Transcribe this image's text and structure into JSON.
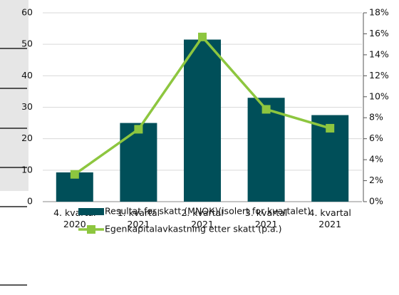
{
  "chart_data": {
    "type": "bar_line",
    "categories": [
      "4. kvartal 2020",
      "1. kvartal 2021",
      "2. kvartal 2021",
      "3. kvartal 2021",
      "4. kvartal 2021"
    ],
    "series": [
      {
        "name": "Resultat før skatt (MNOK)(isolert for kvartalet)",
        "type": "bar",
        "color": "#004f59",
        "values": [
          9.3,
          25,
          51.5,
          33,
          27.5
        ]
      },
      {
        "name": "Egenkapitalavkastning etter skatt (p.a.)",
        "type": "line",
        "axis": "y2",
        "color": "#8dc63f",
        "values": [
          2.6,
          6.9,
          15.7,
          8.8,
          7.0
        ]
      }
    ],
    "ylim": [
      0,
      60
    ],
    "yticks": [
      0,
      10,
      20,
      30,
      40,
      50,
      60
    ],
    "y2lim": [
      0,
      18
    ],
    "y2ticks": [
      {
        "value": 0,
        "label": "0%"
      },
      {
        "value": 2,
        "label": "2%"
      },
      {
        "value": 4,
        "label": "4%"
      },
      {
        "value": 6,
        "label": "6%"
      },
      {
        "value": 8,
        "label": "8%"
      },
      {
        "value": 10,
        "label": "10%"
      },
      {
        "value": 12,
        "label": "12%"
      },
      {
        "value": 14,
        "label": "14%"
      },
      {
        "value": 16,
        "label": "16%"
      },
      {
        "value": 18,
        "label": "18%"
      }
    ],
    "grid": true
  }
}
